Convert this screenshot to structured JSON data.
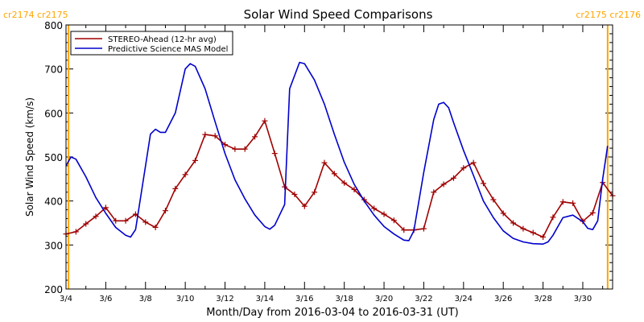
{
  "chart_data": {
    "type": "line",
    "title": "Solar Wind Speed Comparisons",
    "xlabel": "Month/Day from 2016-03-04 to 2016-03-31 (UT)",
    "ylabel": "Solar Wind Speed (km/s)",
    "xlim": [
      "2016-03-04",
      "2016-03-31 12:00"
    ],
    "ylim": [
      200,
      800
    ],
    "x_ticks": [
      {
        "x": "2016-03-04",
        "label": "3/4"
      },
      {
        "x": "2016-03-06",
        "label": "3/6"
      },
      {
        "x": "2016-03-08",
        "label": "3/8"
      },
      {
        "x": "2016-03-10",
        "label": "3/10"
      },
      {
        "x": "2016-03-12",
        "label": "3/12"
      },
      {
        "x": "2016-03-14",
        "label": "3/14"
      },
      {
        "x": "2016-03-16",
        "label": "3/16"
      },
      {
        "x": "2016-03-18",
        "label": "3/18"
      },
      {
        "x": "2016-03-20",
        "label": "3/20"
      },
      {
        "x": "2016-03-22",
        "label": "3/22"
      },
      {
        "x": "2016-03-24",
        "label": "3/24"
      },
      {
        "x": "2016-03-26",
        "label": "3/26"
      },
      {
        "x": "2016-03-28",
        "label": "3/28"
      },
      {
        "x": "2016-03-30",
        "label": "3/30"
      }
    ],
    "y_ticks": [
      200,
      300,
      400,
      500,
      600,
      700,
      800
    ],
    "grid": false,
    "legend": "top-left",
    "rotation_markers": [
      {
        "x": "2016-03-04 03:00",
        "label": "cr2174 cr2175",
        "color": "#FFA500",
        "label_position": "top-left"
      },
      {
        "x": "2016-03-31 06:00",
        "label": "cr2175 cr2176",
        "color": "#FFA500",
        "label_position": "top-right"
      }
    ],
    "series": [
      {
        "name": "STEREO-Ahead (12-hr avg)",
        "color": "#A00000",
        "marker": "+",
        "points": [
          [
            "2016-03-04 00:00",
            325
          ],
          [
            "2016-03-04 12:00",
            330
          ],
          [
            "2016-03-05 00:00",
            348
          ],
          [
            "2016-03-05 12:00",
            365
          ],
          [
            "2016-03-06 00:00",
            385
          ],
          [
            "2016-03-06 12:00",
            355
          ],
          [
            "2016-03-07 00:00",
            355
          ],
          [
            "2016-03-07 12:00",
            370
          ],
          [
            "2016-03-08 00:00",
            352
          ],
          [
            "2016-03-08 12:00",
            340
          ],
          [
            "2016-03-09 00:00",
            378
          ],
          [
            "2016-03-09 12:00",
            428
          ],
          [
            "2016-03-10 00:00",
            460
          ],
          [
            "2016-03-10 12:00",
            492
          ],
          [
            "2016-03-11 00:00",
            551
          ],
          [
            "2016-03-11 12:00",
            548
          ],
          [
            "2016-03-12 00:00",
            528
          ],
          [
            "2016-03-12 12:00",
            518
          ],
          [
            "2016-03-13 00:00",
            518
          ],
          [
            "2016-03-13 12:00",
            546
          ],
          [
            "2016-03-14 00:00",
            582
          ],
          [
            "2016-03-14 12:00",
            508
          ],
          [
            "2016-03-15 00:00",
            432
          ],
          [
            "2016-03-15 12:00",
            415
          ],
          [
            "2016-03-16 00:00",
            388
          ],
          [
            "2016-03-16 12:00",
            420
          ],
          [
            "2016-03-17 00:00",
            487
          ],
          [
            "2016-03-17 12:00",
            462
          ],
          [
            "2016-03-18 00:00",
            441
          ],
          [
            "2016-03-18 12:00",
            426
          ],
          [
            "2016-03-19 00:00",
            403
          ],
          [
            "2016-03-19 12:00",
            383
          ],
          [
            "2016-03-20 00:00",
            370
          ],
          [
            "2016-03-20 12:00",
            356
          ],
          [
            "2016-03-21 00:00",
            334
          ],
          [
            "2016-03-21 12:00",
            334
          ],
          [
            "2016-03-22 00:00",
            337
          ],
          [
            "2016-03-22 12:00",
            420
          ],
          [
            "2016-03-23 00:00",
            438
          ],
          [
            "2016-03-23 12:00",
            452
          ],
          [
            "2016-03-24 00:00",
            475
          ],
          [
            "2016-03-24 12:00",
            487
          ],
          [
            "2016-03-25 00:00",
            440
          ],
          [
            "2016-03-25 12:00",
            403
          ],
          [
            "2016-03-26 00:00",
            372
          ],
          [
            "2016-03-26 12:00",
            350
          ],
          [
            "2016-03-27 00:00",
            337
          ],
          [
            "2016-03-27 12:00",
            328
          ],
          [
            "2016-03-28 00:00",
            318
          ],
          [
            "2016-03-28 12:00",
            363
          ],
          [
            "2016-03-29 00:00",
            398
          ],
          [
            "2016-03-29 12:00",
            395
          ],
          [
            "2016-03-30 00:00",
            354
          ],
          [
            "2016-03-30 12:00",
            373
          ],
          [
            "2016-03-31 00:00",
            442
          ],
          [
            "2016-03-31 12:00",
            412
          ]
        ]
      },
      {
        "name": "Predictive Science MAS Model",
        "color": "#0000CC",
        "points": [
          [
            "2016-03-04 00:00",
            480
          ],
          [
            "2016-03-04 06:00",
            500
          ],
          [
            "2016-03-04 12:00",
            495
          ],
          [
            "2016-03-05 00:00",
            455
          ],
          [
            "2016-03-05 12:00",
            408
          ],
          [
            "2016-03-06 00:00",
            372
          ],
          [
            "2016-03-06 12:00",
            340
          ],
          [
            "2016-03-07 00:00",
            322
          ],
          [
            "2016-03-07 06:00",
            318
          ],
          [
            "2016-03-07 12:00",
            335
          ],
          [
            "2016-03-08 00:00",
            480
          ],
          [
            "2016-03-08 06:00",
            552
          ],
          [
            "2016-03-08 12:00",
            563
          ],
          [
            "2016-03-08 18:00",
            556
          ],
          [
            "2016-03-09 00:00",
            556
          ],
          [
            "2016-03-09 12:00",
            600
          ],
          [
            "2016-03-10 00:00",
            700
          ],
          [
            "2016-03-10 06:00",
            712
          ],
          [
            "2016-03-10 12:00",
            706
          ],
          [
            "2016-03-11 00:00",
            655
          ],
          [
            "2016-03-11 12:00",
            580
          ],
          [
            "2016-03-12 00:00",
            508
          ],
          [
            "2016-03-12 12:00",
            448
          ],
          [
            "2016-03-13 00:00",
            405
          ],
          [
            "2016-03-13 12:00",
            368
          ],
          [
            "2016-03-14 00:00",
            342
          ],
          [
            "2016-03-14 06:00",
            336
          ],
          [
            "2016-03-14 12:00",
            345
          ],
          [
            "2016-03-15 00:00",
            392
          ],
          [
            "2016-03-15 06:00",
            655
          ],
          [
            "2016-03-15 18:00",
            715
          ],
          [
            "2016-03-16 00:00",
            712
          ],
          [
            "2016-03-16 12:00",
            675
          ],
          [
            "2016-03-17 00:00",
            620
          ],
          [
            "2016-03-17 12:00",
            552
          ],
          [
            "2016-03-18 00:00",
            488
          ],
          [
            "2016-03-18 12:00",
            438
          ],
          [
            "2016-03-19 00:00",
            400
          ],
          [
            "2016-03-19 12:00",
            368
          ],
          [
            "2016-03-20 00:00",
            342
          ],
          [
            "2016-03-20 12:00",
            325
          ],
          [
            "2016-03-21 00:00",
            311
          ],
          [
            "2016-03-21 06:00",
            310
          ],
          [
            "2016-03-21 12:00",
            332
          ],
          [
            "2016-03-22 00:00",
            465
          ],
          [
            "2016-03-22 12:00",
            585
          ],
          [
            "2016-03-22 18:00",
            620
          ],
          [
            "2016-03-23 00:00",
            624
          ],
          [
            "2016-03-23 06:00",
            612
          ],
          [
            "2016-03-23 12:00",
            578
          ],
          [
            "2016-03-24 00:00",
            515
          ],
          [
            "2016-03-24 12:00",
            458
          ],
          [
            "2016-03-25 00:00",
            400
          ],
          [
            "2016-03-25 12:00",
            362
          ],
          [
            "2016-03-26 00:00",
            332
          ],
          [
            "2016-03-26 12:00",
            315
          ],
          [
            "2016-03-27 00:00",
            307
          ],
          [
            "2016-03-27 12:00",
            303
          ],
          [
            "2016-03-28 00:00",
            302
          ],
          [
            "2016-03-28 06:00",
            307
          ],
          [
            "2016-03-28 12:00",
            322
          ],
          [
            "2016-03-29 00:00",
            362
          ],
          [
            "2016-03-29 12:00",
            368
          ],
          [
            "2016-03-30 00:00",
            353
          ],
          [
            "2016-03-30 06:00",
            338
          ],
          [
            "2016-03-30 12:00",
            335
          ],
          [
            "2016-03-30 18:00",
            355
          ],
          [
            "2016-03-31 00:00",
            450
          ],
          [
            "2016-03-31 06:00",
            525
          ]
        ]
      }
    ]
  }
}
